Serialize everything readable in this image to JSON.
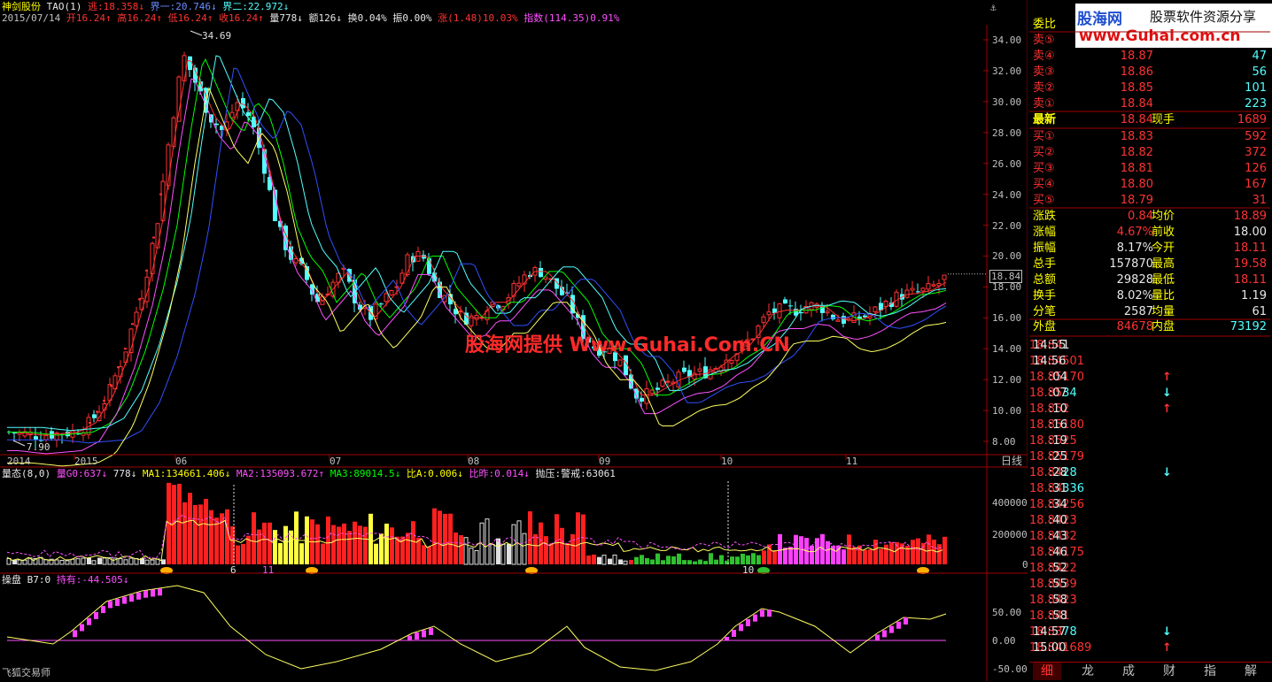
{
  "main_header": {
    "stock_name": "神剑股份",
    "ind1": "TAO(1)",
    "ind1_a": "逃:18.358↓",
    "ind1_b": "界一:20.746↓",
    "ind1_c": "界二:22.972↓",
    "date": "2015/07/14",
    "open": "开16.24↑",
    "high": "高16.24↑",
    "low": "低16.24↑",
    "close": "收16.24↑",
    "vol": "量778↓",
    "amount": "额126↓",
    "turnover": "换0.04%",
    "amplitude": "振0.00%",
    "change": "涨(1.48)10.03%",
    "index": "指数(114.35)0.91%"
  },
  "price_axis": [
    "34.00",
    "32.00",
    "30.00",
    "28.00",
    "26.00",
    "24.00",
    "22.00",
    "20.00",
    "18.00",
    "16.00",
    "14.00",
    "12.00",
    "10.00",
    "8.00"
  ],
  "price_marker": "18.84",
  "high_label": "34.69",
  "low_label": "7.90",
  "watermark_center": "股海网提供 Www.Guhai.Com.CN",
  "time_axis": [
    "2014",
    "2015",
    "06",
    "07",
    "08",
    "09",
    "10",
    "11"
  ],
  "period_label": "日线",
  "vol_header": {
    "name": "量态(8,0)",
    "a": "量G0:637↓",
    "b": "778↓",
    "c": "MA1:134661.406↓",
    "d": "MA2:135093.672↑",
    "e": "MA3:89014.5↓",
    "f": "比A:0.006↓",
    "g": "比昨:0.014↓",
    "h": "抛压:警戒:63061"
  },
  "vol_axis": [
    "400000",
    "200000",
    "0"
  ],
  "vol_marks": [
    "6",
    "11",
    "10"
  ],
  "osc_header": {
    "name": "操盘 B7:0",
    "a": "持有:-44.505↓"
  },
  "osc_axis": [
    "50.00",
    "0.00",
    "-50.00"
  ],
  "footer_brand": "飞狐交易师",
  "logo": {
    "name": "股海网",
    "slogan": "股票软件资源分享",
    "url": "www.Guhai.com.cn"
  },
  "quote": {
    "weibi_label": "委比",
    "sell": [
      {
        "label": "卖⑤",
        "price": "",
        "vol": ""
      },
      {
        "label": "卖④",
        "price": "18.87",
        "vol": "47"
      },
      {
        "label": "卖③",
        "price": "18.86",
        "vol": "56"
      },
      {
        "label": "卖②",
        "price": "18.85",
        "vol": "101"
      },
      {
        "label": "卖①",
        "price": "18.84",
        "vol": "223"
      }
    ],
    "latest": {
      "label": "最新",
      "price": "18.84",
      "label2": "现手",
      "vol": "1689"
    },
    "buy": [
      {
        "label": "买①",
        "price": "18.83",
        "vol": "592"
      },
      {
        "label": "买②",
        "price": "18.82",
        "vol": "372"
      },
      {
        "label": "买③",
        "price": "18.81",
        "vol": "126"
      },
      {
        "label": "买④",
        "price": "18.80",
        "vol": "167"
      },
      {
        "label": "买⑤",
        "price": "18.79",
        "vol": "31"
      }
    ],
    "stats": [
      {
        "l1": "涨跌",
        "v1": "0.84",
        "c1": "red",
        "l2": "均价",
        "v2": "18.89",
        "c2": "red"
      },
      {
        "l1": "涨幅",
        "v1": "4.67%",
        "c1": "red",
        "l2": "前收",
        "v2": "18.00",
        "c2": "white"
      },
      {
        "l1": "振幅",
        "v1": "8.17%",
        "c1": "white",
        "l2": "今开",
        "v2": "18.11",
        "c2": "red"
      },
      {
        "l1": "总手",
        "v1": "157870",
        "c1": "white",
        "l2": "最高",
        "v2": "19.58",
        "c2": "red"
      },
      {
        "l1": "总额",
        "v1": "29828",
        "c1": "white",
        "l2": "最低",
        "v2": "18.11",
        "c2": "red"
      },
      {
        "l1": "换手",
        "v1": "8.02%",
        "c1": "white",
        "l2": "量比",
        "v2": "1.19",
        "c2": "white"
      },
      {
        "l1": "分笔",
        "v1": "2587",
        "c1": "white",
        "l2": "均量",
        "v2": "61",
        "c2": "white"
      }
    ],
    "outer": {
      "label": "外盘",
      "value": "84678",
      "label2": "内盘",
      "value2": "73192"
    }
  },
  "ticks": [
    {
      "t": "14:55",
      "p": "18.84",
      "a": "",
      "v": "1",
      "vc": "white"
    },
    {
      "t": "14:56",
      "p": "18.84",
      "a": "",
      "v": "501",
      "vc": "red"
    },
    {
      "t": ":04",
      "p": "18.85",
      "a": "↑",
      "ac": "red",
      "v": "170",
      "vc": "red"
    },
    {
      "t": ":07",
      "p": "18.85",
      "a": "↓",
      "ac": "cyan",
      "v": "34",
      "vc": "cyan"
    },
    {
      "t": ":10",
      "p": "18.85",
      "a": "↑",
      "ac": "red",
      "v": "2",
      "vc": "red"
    },
    {
      "t": ":16",
      "p": "18.85",
      "a": "",
      "v": "180",
      "vc": "red"
    },
    {
      "t": ":19",
      "p": "18.85",
      "a": "",
      "v": "25",
      "vc": "red"
    },
    {
      "t": ":25",
      "p": "18.85",
      "a": "",
      "v": "179",
      "vc": "red"
    },
    {
      "t": ":28",
      "p": "18.84",
      "a": "↓",
      "ac": "cyan",
      "v": "28",
      "vc": "cyan"
    },
    {
      "t": ":31",
      "p": "18.84",
      "a": "",
      "v": "336",
      "vc": "cyan"
    },
    {
      "t": ":34",
      "p": "18.84",
      "a": "",
      "v": "256",
      "vc": "red"
    },
    {
      "t": ":40",
      "p": "18.84",
      "a": "",
      "v": "23",
      "vc": "red"
    },
    {
      "t": ":43",
      "p": "18.84",
      "a": "",
      "v": "32",
      "vc": "red"
    },
    {
      "t": ":46",
      "p": "18.84",
      "a": "",
      "v": "175",
      "vc": "red"
    },
    {
      "t": ":52",
      "p": "18.84",
      "a": "",
      "v": "22",
      "vc": "red"
    },
    {
      "t": ":55",
      "p": "18.84",
      "a": "",
      "v": "39",
      "vc": "red"
    },
    {
      "t": ":58",
      "p": "18.84",
      "a": "",
      "v": "23",
      "vc": "red"
    },
    {
      "t": ":58",
      "p": "18.84",
      "a": "",
      "v": "1",
      "vc": "red"
    },
    {
      "t": "14:57",
      "p": "18.83",
      "a": "↓",
      "ac": "cyan",
      "v": "78",
      "vc": "cyan"
    },
    {
      "t": "15:00",
      "p": "18.84",
      "a": "↑",
      "ac": "red",
      "v": "1689",
      "vc": "red"
    }
  ],
  "bottom_tabs": [
    "细",
    "龙",
    "成",
    "财",
    "指",
    "解"
  ],
  "colors": {
    "bg": "#000000",
    "up": "#ff3232",
    "down": "#52ffff",
    "grid": "#a00000"
  }
}
